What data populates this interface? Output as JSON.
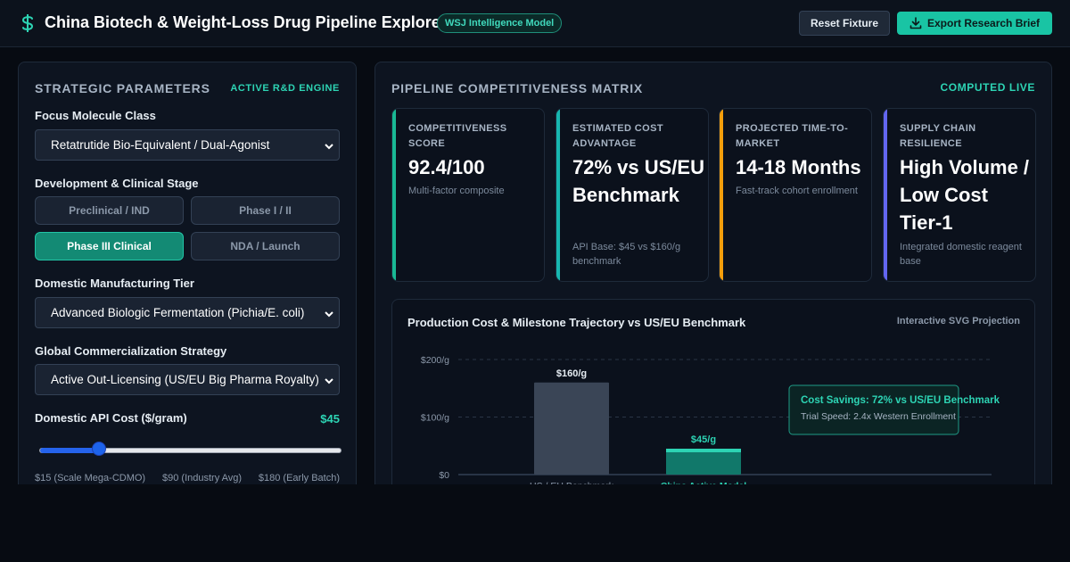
{
  "header": {
    "title": "China Biotech & Weight-Loss Drug Pipeline Explorer",
    "badge": "WSJ Intelligence Model",
    "reset_label": "Reset Fixture",
    "export_label": "Export Research Brief"
  },
  "params": {
    "title": "STRATEGIC PARAMETERS",
    "tag": "ACTIVE R&D ENGINE",
    "molecule_label": "Focus Molecule Class",
    "molecule_value": "Retatrutide Bio-Equivalent / Dual-Agonist",
    "stage_label": "Development & Clinical Stage",
    "stages": [
      {
        "label": "Preclinical / IND",
        "active": false
      },
      {
        "label": "Phase I / II",
        "active": false
      },
      {
        "label": "Phase III Clinical",
        "active": true
      },
      {
        "label": "NDA / Launch",
        "active": false
      }
    ],
    "manufacturing_label": "Domestic Manufacturing Tier",
    "manufacturing_value": "Advanced Biologic Fermentation (Pichia/E. coli)",
    "strategy_label": "Global Commercialization Strategy",
    "strategy_value": "Active Out-Licensing (US/EU Big Pharma Royalty)",
    "api_cost_label": "Domestic API Cost ($/gram)",
    "api_cost_value": "$45",
    "slider": {
      "min": 15,
      "max": 180,
      "value": 45
    },
    "slider_ticks": [
      "$15 (Scale Mega-CDMO)",
      "$90 (Industry Avg)",
      "$180 (Early Batch)"
    ]
  },
  "matrix": {
    "title": "PIPELINE COMPETITIVENESS MATRIX",
    "tag": "COMPUTED LIVE",
    "cards": [
      {
        "label": "Competitiveness Score",
        "value": "92.4/100",
        "sub": "Multi-factor composite",
        "color": "#19b894"
      },
      {
        "label": "Estimated Cost Advantage",
        "value": "72% vs US/EU Benchmark",
        "sub": "API Base: $45 vs $160/g benchmark",
        "color": "#17b6b0"
      },
      {
        "label": "Projected Time-to-Market",
        "value": "14-18 Months",
        "sub": "Fast-track cohort enrollment",
        "color": "#f59e0b"
      },
      {
        "label": "Supply Chain Resilience",
        "value": "High Volume / Low Cost Tier-1",
        "sub": "Integrated domestic reagent base",
        "color": "#6366f1"
      }
    ]
  },
  "chart_section": {
    "title": "Production Cost & Milestone Trajectory vs US/EU Benchmark",
    "tag": "Interactive SVG Projection",
    "callout_title": "Cost Savings: 72% vs US/EU Benchmark",
    "callout_sub": "Trial Speed: 2.4x Western Enrollment"
  },
  "chart_data": {
    "type": "bar",
    "categories": [
      "US / EU Benchmark",
      "China Active Model"
    ],
    "values": [
      160,
      45
    ],
    "value_labels": [
      "$160/g",
      "$45/g"
    ],
    "yticks": [
      "$0",
      "$100/g",
      "$200/g"
    ],
    "ylim": [
      0,
      200
    ],
    "grid": true,
    "colors": [
      "#3a4556",
      "#11786a"
    ]
  }
}
